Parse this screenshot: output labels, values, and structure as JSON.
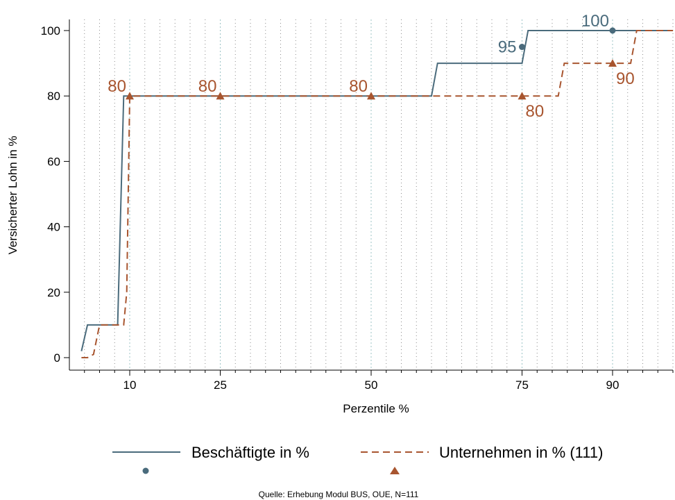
{
  "chart_data": {
    "type": "line",
    "xlabel": "Perzentile %",
    "ylabel": "Versicherter Lohn in %",
    "source": "Quelle: Erhebung Modul BUS, OUE, N=111",
    "xlim": [
      0,
      100
    ],
    "ylim": [
      0,
      100
    ],
    "x_ticks": [
      10,
      25,
      50,
      75,
      90
    ],
    "x_tick_labels": [
      "10",
      "25",
      "50",
      "75",
      "90"
    ],
    "y_ticks": [
      0,
      20,
      40,
      60,
      80,
      100
    ],
    "y_tick_labels": [
      "0",
      "20",
      "40",
      "60",
      "80",
      "100"
    ],
    "minor_x_gridlines": [
      2.5,
      5,
      7.5,
      10,
      12.5,
      15,
      17.5,
      20,
      22.5,
      25,
      27.5,
      30,
      32.5,
      35,
      37.5,
      40,
      42.5,
      45,
      47.5,
      50,
      52.5,
      55,
      57.5,
      60,
      62.5,
      65,
      67.5,
      70,
      72.5,
      75,
      77.5,
      80,
      82.5,
      85,
      87.5,
      90,
      92.5,
      95,
      97.5,
      100
    ],
    "grid": "vertical dotted",
    "legend_position": "bottom",
    "series": [
      {
        "name": "Beschäftigte in %",
        "color": "#4a6b7c",
        "style": "solid",
        "marker": "circle",
        "points": [
          [
            2,
            2
          ],
          [
            3,
            10
          ],
          [
            8,
            10
          ],
          [
            9,
            80
          ],
          [
            60,
            80
          ],
          [
            61,
            90
          ],
          [
            75,
            90
          ],
          [
            76,
            100
          ],
          [
            100,
            100
          ]
        ],
        "markers": [
          [
            75,
            95
          ],
          [
            90,
            100
          ]
        ],
        "marker_labels": [
          {
            "x": 75,
            "y": 95,
            "text": "95",
            "pos": "left"
          },
          {
            "x": 90,
            "y": 100,
            "text": "100",
            "pos": "above-left"
          }
        ]
      },
      {
        "name": "Unternehmen in % (111)",
        "color": "#a8552f",
        "style": "dashed",
        "marker": "triangle",
        "points": [
          [
            2,
            0
          ],
          [
            3,
            0
          ],
          [
            4,
            1
          ],
          [
            5,
            10
          ],
          [
            9,
            10
          ],
          [
            9.5,
            20
          ],
          [
            10,
            80
          ],
          [
            81,
            80
          ],
          [
            82,
            90
          ],
          [
            93,
            90
          ],
          [
            94,
            100
          ],
          [
            100,
            100
          ]
        ],
        "markers": [
          [
            10,
            80
          ],
          [
            25,
            80
          ],
          [
            50,
            80
          ],
          [
            75,
            80
          ],
          [
            90,
            90
          ]
        ],
        "marker_labels": [
          {
            "x": 10,
            "y": 80,
            "text": "80",
            "pos": "above-left"
          },
          {
            "x": 25,
            "y": 80,
            "text": "80",
            "pos": "above-left"
          },
          {
            "x": 50,
            "y": 80,
            "text": "80",
            "pos": "above-left"
          },
          {
            "x": 75,
            "y": 80,
            "text": "80",
            "pos": "below-right"
          },
          {
            "x": 90,
            "y": 90,
            "text": "90",
            "pos": "below-right"
          }
        ]
      }
    ]
  }
}
